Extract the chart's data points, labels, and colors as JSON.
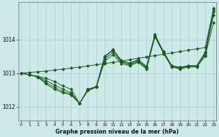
{
  "bg_color": "#cce8e8",
  "grid_color": "#aacfcf",
  "line_color": "#1a5c1a",
  "marker_color": "#1a5c1a",
  "title": "Graphe pression niveau de la mer (hPa)",
  "xlabel_hours": [
    0,
    1,
    2,
    3,
    4,
    5,
    6,
    7,
    8,
    9,
    10,
    11,
    12,
    13,
    14,
    15,
    16,
    17,
    18,
    19,
    20,
    21,
    22,
    23
  ],
  "yticks": [
    1012,
    1013,
    1014
  ],
  "ylim": [
    1011.6,
    1015.1
  ],
  "xlim": [
    -0.3,
    23.3
  ],
  "series": [
    [
      1013.0,
      1012.95,
      1012.9,
      1012.85,
      1012.75,
      1012.62,
      1012.52,
      1012.1,
      1012.48,
      1012.58,
      1013.35,
      1013.55,
      1013.28,
      1013.22,
      1013.32,
      1013.12,
      1014.08,
      1013.6,
      1013.18,
      1013.12,
      1013.18,
      1013.18,
      1013.5,
      1014.5
    ],
    [
      1013.0,
      1012.95,
      1012.9,
      1012.78,
      1012.65,
      1012.52,
      1012.42,
      1012.1,
      1012.5,
      1012.58,
      1013.42,
      1013.62,
      1013.32,
      1013.25,
      1013.35,
      1013.15,
      1014.1,
      1013.62,
      1013.2,
      1013.15,
      1013.2,
      1013.2,
      1013.55,
      1014.72
    ],
    [
      1013.0,
      1012.95,
      1012.9,
      1012.72,
      1012.58,
      1012.45,
      1012.38,
      1012.1,
      1012.52,
      1012.6,
      1013.48,
      1013.68,
      1013.35,
      1013.28,
      1013.38,
      1013.18,
      1014.12,
      1013.64,
      1013.22,
      1013.17,
      1013.22,
      1013.22,
      1013.6,
      1014.82
    ],
    [
      1013.0,
      1012.95,
      1012.88,
      1012.68,
      1012.52,
      1012.42,
      1012.35,
      1012.1,
      1012.52,
      1012.6,
      1013.5,
      1013.7,
      1013.38,
      1013.3,
      1013.4,
      1013.2,
      1014.15,
      1013.65,
      1013.22,
      1013.17,
      1013.22,
      1013.22,
      1013.62,
      1014.88
    ],
    [
      1013.0,
      1013.02,
      1013.04,
      1013.06,
      1013.09,
      1013.12,
      1013.15,
      1013.18,
      1013.21,
      1013.25,
      1013.28,
      1013.32,
      1013.36,
      1013.4,
      1013.44,
      1013.48,
      1013.52,
      1013.56,
      1013.6,
      1013.64,
      1013.68,
      1013.72,
      1013.76,
      1014.92
    ]
  ]
}
